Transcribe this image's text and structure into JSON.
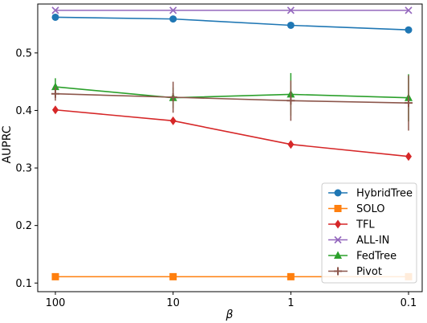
{
  "chart_data": {
    "type": "line",
    "title": "",
    "xlabel": "β",
    "ylabel": "AUPRC",
    "categories": [
      "100",
      "10",
      "1",
      "0.1"
    ],
    "ylim": [
      0.085,
      0.585
    ],
    "yticks": [
      0.1,
      0.2,
      0.3,
      0.4,
      0.5
    ],
    "ytick_labels": [
      "0.1",
      "0.2",
      "0.3",
      "0.4",
      "0.5"
    ],
    "grid": false,
    "legend_position": "bottom-right",
    "series": [
      {
        "name": "HybridTree",
        "color": "#1f77b4",
        "marker": "circle",
        "values": [
          0.562,
          0.559,
          0.548,
          0.54
        ]
      },
      {
        "name": "SOLO",
        "color": "#ff7f0e",
        "marker": "square",
        "values": [
          0.111,
          0.111,
          0.111,
          0.111
        ]
      },
      {
        "name": "TFL",
        "color": "#d62728",
        "marker": "diamond",
        "values": [
          0.401,
          0.382,
          0.341,
          0.32
        ]
      },
      {
        "name": "ALL-IN",
        "color": "#9467bd",
        "marker": "x",
        "values": [
          0.574,
          0.574,
          0.574,
          0.574
        ]
      },
      {
        "name": "FedTree",
        "color": "#2ca02c",
        "marker": "triangle",
        "values": [
          0.441,
          0.422,
          0.428,
          0.422
        ],
        "errors": [
          0.015,
          0.018,
          0.037,
          0.041
        ]
      },
      {
        "name": "Pivot",
        "color": "#8c564b",
        "marker": "plus",
        "values": [
          0.429,
          0.423,
          0.417,
          0.413
        ],
        "errors": [
          0.012,
          0.027,
          0.035,
          0.048
        ]
      }
    ]
  }
}
